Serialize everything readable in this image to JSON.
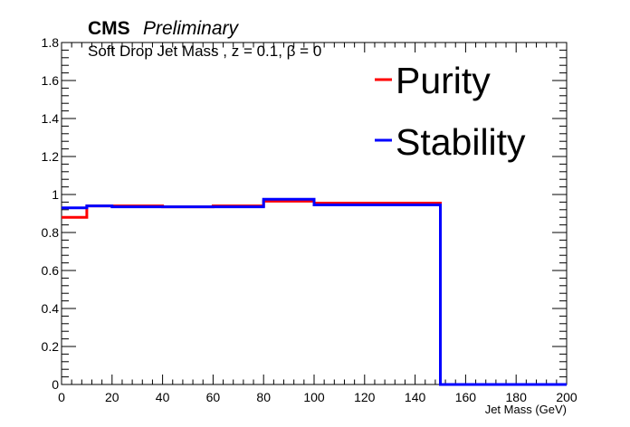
{
  "chart_data": {
    "type": "line",
    "experiment": "CMS",
    "status": "Preliminary",
    "subtitle": "Soft Drop Jet Mass , z = 0.1,  β = 0",
    "xlabel": "Jet Mass (GeV)",
    "ylabel": "",
    "xlim": [
      0,
      200
    ],
    "ylim": [
      0,
      1.8
    ],
    "x_ticks": [
      "0",
      "20",
      "40",
      "60",
      "80",
      "100",
      "120",
      "140",
      "160",
      "180",
      "200"
    ],
    "y_ticks": [
      "0",
      "0.2",
      "0.4",
      "0.6",
      "0.8",
      "1",
      "1.2",
      "1.4",
      "1.6",
      "1.8"
    ],
    "bin_edges": [
      0,
      10,
      20,
      40,
      60,
      80,
      100,
      150,
      200
    ],
    "legend_position": "top-right",
    "series": [
      {
        "name": "Purity",
        "color": "#ff0000",
        "values": [
          0.88,
          0.94,
          0.94,
          0.935,
          0.94,
          0.965,
          0.955,
          0.0
        ]
      },
      {
        "name": "Stability",
        "color": "#0000ff",
        "values": [
          0.93,
          0.94,
          0.935,
          0.935,
          0.935,
          0.975,
          0.945,
          0.0
        ]
      }
    ]
  }
}
